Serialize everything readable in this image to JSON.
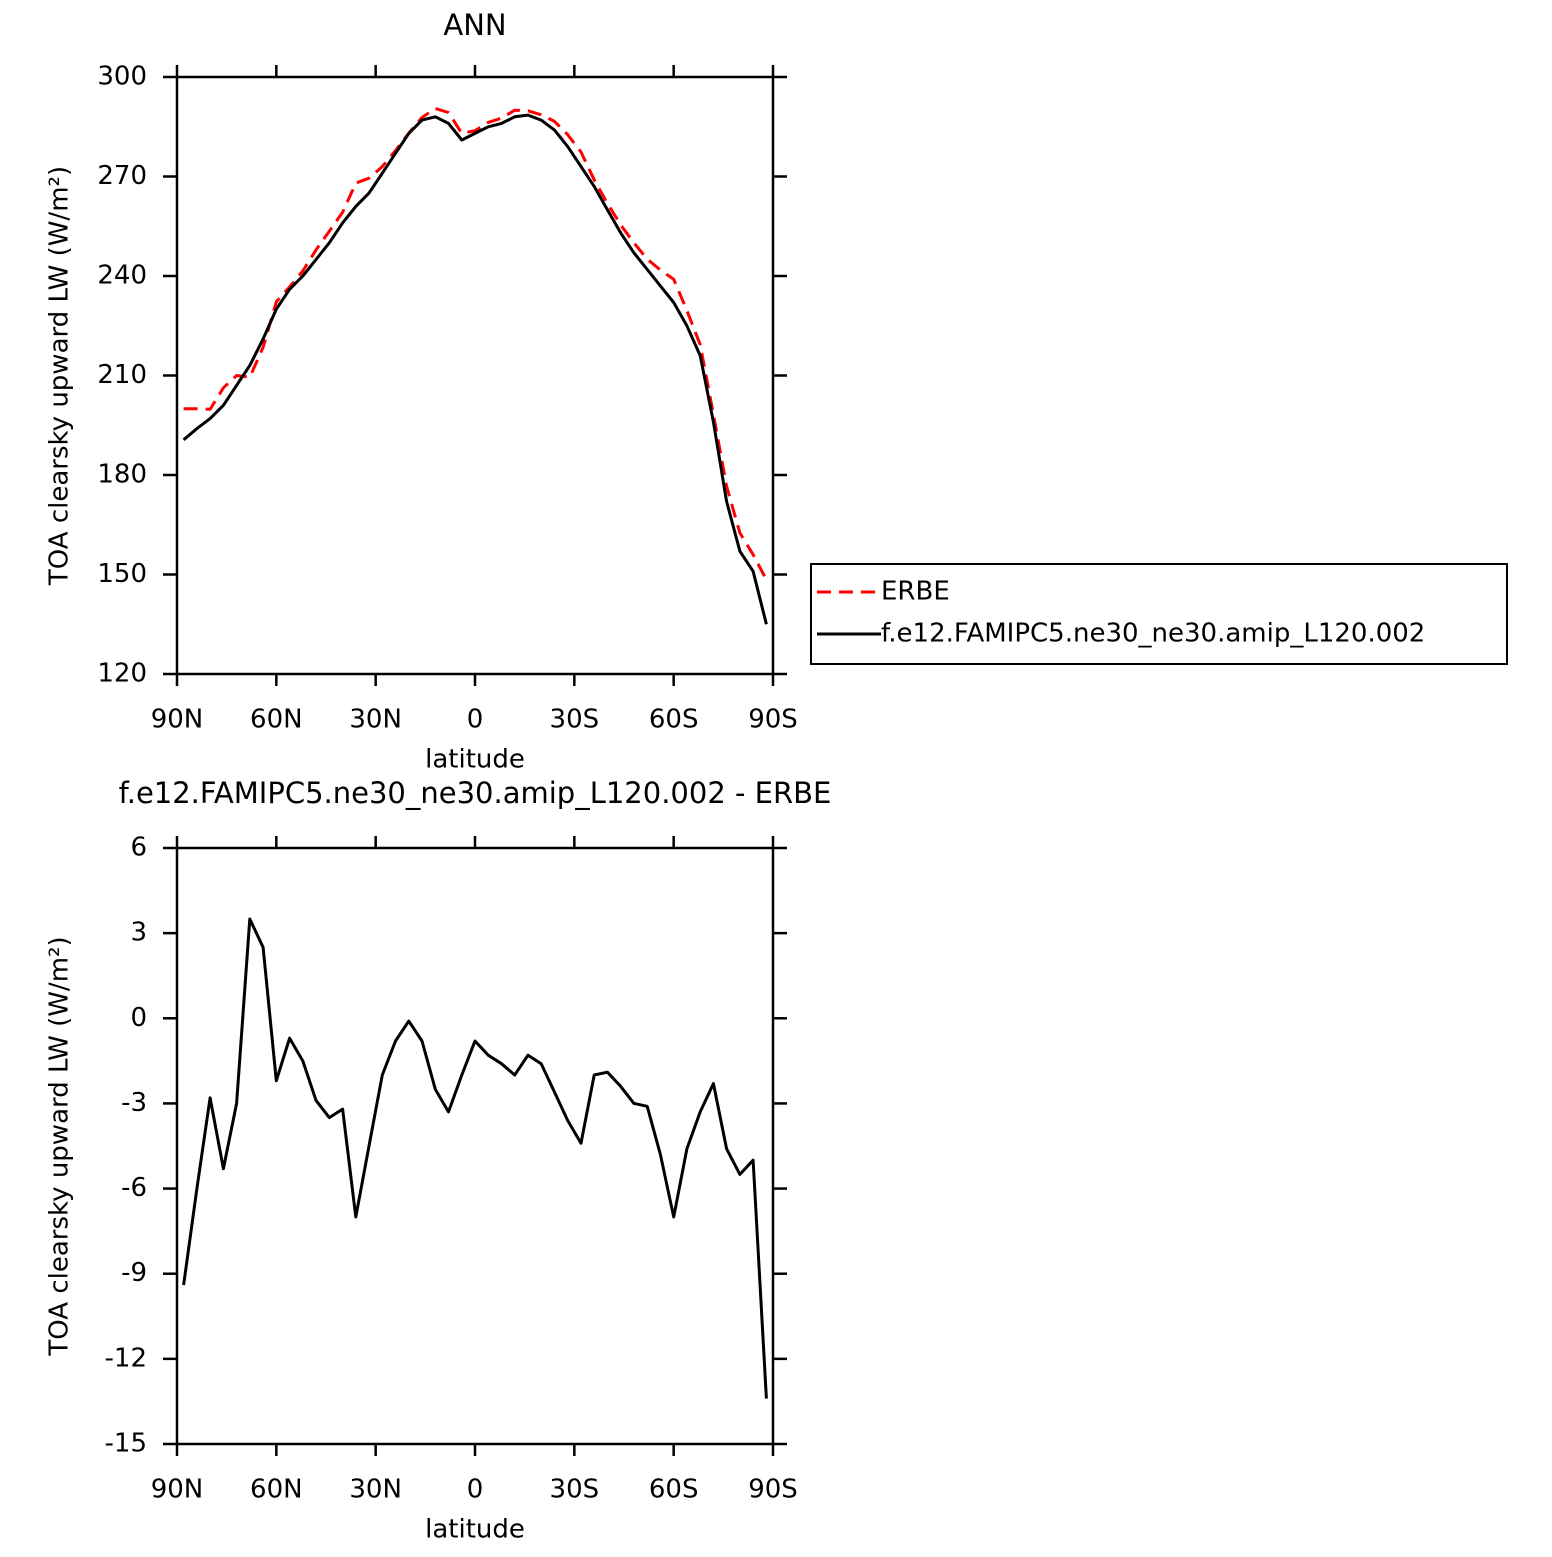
{
  "chart_data": [
    {
      "type": "line",
      "title": "ANN",
      "x_label": "latitude",
      "y_label": "TOA clearsky upward LW (W/m²)",
      "x": [
        88,
        84,
        80,
        76,
        72,
        68,
        64,
        60,
        56,
        52,
        48,
        44,
        40,
        36,
        32,
        28,
        24,
        20,
        16,
        12,
        8,
        4,
        0,
        -4,
        -8,
        -12,
        -16,
        -20,
        -24,
        -28,
        -32,
        -36,
        -40,
        -44,
        -48,
        -52,
        -56,
        -60,
        -64,
        -68,
        -72,
        -76,
        -80,
        -84,
        -88
      ],
      "xlim": [
        90,
        -90
      ],
      "xticks": [
        {
          "value": 90,
          "label": "90N"
        },
        {
          "value": 60,
          "label": "60N"
        },
        {
          "value": 30,
          "label": "30N"
        },
        0,
        {
          "value": -30,
          "label": "30S"
        },
        {
          "value": -60,
          "label": "60S"
        },
        {
          "value": -90,
          "label": "90S"
        }
      ],
      "ylim": [
        120,
        300
      ],
      "yticks": [
        120,
        150,
        180,
        210,
        240,
        270,
        300
      ],
      "legend": "right",
      "series": [
        {
          "name": "ERBE",
          "color": "#ff0000",
          "line_style": "dashed",
          "values": [
            200,
            200,
            199.8,
            206.3,
            210,
            209.5,
            218.5,
            232.2,
            236.7,
            241.5,
            247.9,
            253.5,
            259.2,
            268,
            269.5,
            273,
            277.8,
            283.1,
            287.8,
            290.5,
            289.3,
            283,
            283.8,
            286.3,
            287.6,
            290,
            289.8,
            288.6,
            286.6,
            282.6,
            277.4,
            269,
            261.9,
            255.4,
            250,
            245.1,
            241.8,
            239,
            229.6,
            219.3,
            198.3,
            176.6,
            162.5,
            156,
            148.4
          ]
        },
        {
          "name": "f.e12.FAMIPC5.ne30_ne30.amip_L120.002",
          "color": "#000000",
          "line_style": "solid",
          "values": [
            190.6,
            194,
            197,
            201,
            207,
            213,
            221,
            230,
            236,
            240,
            245,
            250,
            256,
            261,
            265,
            271,
            277,
            283,
            287,
            288,
            286,
            281,
            283,
            285,
            286,
            288,
            288.5,
            287,
            284,
            279,
            273,
            267,
            260,
            253,
            247,
            242,
            237,
            232,
            225,
            216,
            196,
            172,
            157,
            151,
            135
          ]
        }
      ]
    },
    {
      "type": "line",
      "title": "f.e12.FAMIPC5.ne30_ne30.amip_L120.002 - ERBE",
      "x_label": "latitude",
      "y_label": "TOA clearsky upward LW (W/m²)",
      "x": [
        88,
        84,
        80,
        76,
        72,
        68,
        64,
        60,
        56,
        52,
        48,
        44,
        40,
        36,
        32,
        28,
        24,
        20,
        16,
        12,
        8,
        4,
        0,
        -4,
        -8,
        -12,
        -16,
        -20,
        -24,
        -28,
        -32,
        -36,
        -40,
        -44,
        -48,
        -52,
        -56,
        -60,
        -64,
        -68,
        -72,
        -76,
        -80,
        -84,
        -88
      ],
      "xlim": [
        90,
        -90
      ],
      "xticks": [
        {
          "value": 90,
          "label": "90N"
        },
        {
          "value": 60,
          "label": "60N"
        },
        {
          "value": 30,
          "label": "30N"
        },
        0,
        {
          "value": -30,
          "label": "30S"
        },
        {
          "value": -60,
          "label": "60S"
        },
        {
          "value": -90,
          "label": "90S"
        }
      ],
      "ylim": [
        -15,
        6
      ],
      "yticks": [
        -15,
        -12,
        -9,
        -6,
        -3,
        0,
        3,
        6
      ],
      "series": [
        {
          "color": "#000000",
          "line_style": "solid",
          "values": [
            -9.4,
            -6,
            -2.8,
            -5.3,
            -3,
            3.5,
            2.5,
            -2.2,
            -0.7,
            -1.5,
            -2.9,
            -3.5,
            -3.2,
            -7,
            -4.5,
            -2,
            -0.8,
            -0.1,
            -0.8,
            -2.5,
            -3.3,
            -2,
            -0.8,
            -1.3,
            -1.6,
            -2,
            -1.3,
            -1.6,
            -2.6,
            -3.6,
            -4.4,
            -2,
            -1.9,
            -2.4,
            -3,
            -3.1,
            -4.8,
            -7,
            -4.6,
            -3.3,
            -2.3,
            -4.6,
            -5.5,
            -5,
            -13.4
          ]
        }
      ]
    }
  ]
}
